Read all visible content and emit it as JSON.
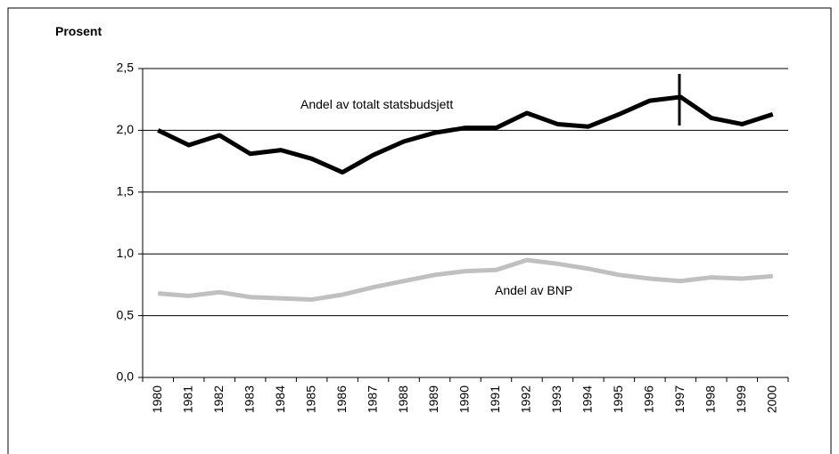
{
  "chart_data": {
    "type": "line",
    "y_axis_label": "Prosent",
    "categories": [
      "1980",
      "1981",
      "1982",
      "1983",
      "1984",
      "1985",
      "1986",
      "1987",
      "1988",
      "1989",
      "1990",
      "1991",
      "1992",
      "1993",
      "1994",
      "1995",
      "1996",
      "1997",
      "1998",
      "1999",
      "2000"
    ],
    "series": [
      {
        "name": "Andel av totalt statsbudsjett",
        "color": "#000000",
        "values": [
          2.0,
          1.88,
          1.96,
          1.81,
          1.84,
          1.77,
          1.66,
          1.8,
          1.91,
          1.98,
          2.02,
          2.02,
          2.14,
          2.05,
          2.03,
          2.13,
          2.24,
          2.27,
          2.1,
          2.05,
          2.13
        ]
      },
      {
        "name": "Andel av BNP",
        "color": "#c0c0c0",
        "values": [
          0.68,
          0.66,
          0.69,
          0.65,
          0.64,
          0.63,
          0.67,
          0.73,
          0.78,
          0.83,
          0.86,
          0.87,
          0.95,
          0.92,
          0.88,
          0.83,
          0.8,
          0.78,
          0.81,
          0.8,
          0.82
        ]
      }
    ],
    "ylim": [
      0,
      2.5
    ],
    "yticks": [
      {
        "value": 0,
        "label": "0,0"
      },
      {
        "value": 0.5,
        "label": "0,5"
      },
      {
        "value": 1,
        "label": "1,0"
      },
      {
        "value": 1.5,
        "label": "1,5"
      },
      {
        "value": 2,
        "label": "2,0"
      },
      {
        "value": 2.5,
        "label": "2,5"
      }
    ],
    "grid": true
  }
}
